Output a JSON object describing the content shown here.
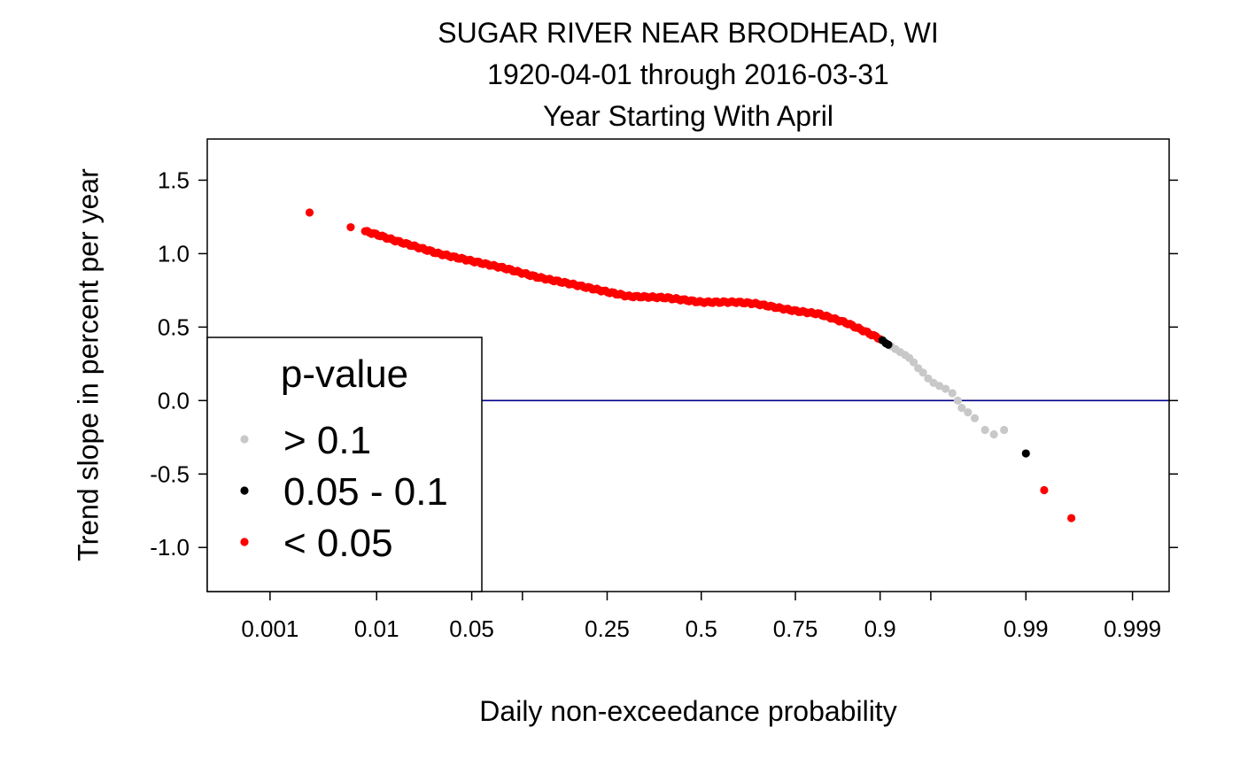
{
  "chart_data": {
    "type": "scatter",
    "title": "SUGAR RIVER NEAR BRODHEAD, WI",
    "subtitle": "1920-04-01 through 2016-03-31",
    "subtitle2": "Year Starting With April",
    "xlabel": "Daily non-exceedance probability",
    "ylabel": "Trend slope in percent per year",
    "x_scale": "probability",
    "xlim": [
      0.0002,
      0.9996
    ],
    "ylim": [
      -1.3,
      1.78
    ],
    "x_ticks": [
      {
        "value": 0.001,
        "label": "0.001"
      },
      {
        "value": 0.01,
        "label": "0.01"
      },
      {
        "value": 0.05,
        "label": "0.05"
      },
      {
        "value": 0.25,
        "label": "0.25"
      },
      {
        "value": 0.5,
        "label": "0.5"
      },
      {
        "value": 0.75,
        "label": "0.75"
      },
      {
        "value": 0.9,
        "label": "0.9"
      },
      {
        "value": 0.99,
        "label": "0.99"
      },
      {
        "value": 0.999,
        "label": "0.999"
      }
    ],
    "x_minor_ticks": [
      0.1,
      0.95
    ],
    "y_ticks": [
      {
        "value": 1.5,
        "label": "1.5"
      },
      {
        "value": 1.0,
        "label": "1.0"
      },
      {
        "value": 0.5,
        "label": "0.5"
      },
      {
        "value": 0.0,
        "label": "0.0"
      },
      {
        "value": -0.5,
        "label": "-0.5"
      },
      {
        "value": -1.0,
        "label": "-1.0"
      }
    ],
    "reference_line": {
      "y": 0,
      "color": "#00008b"
    },
    "legend": {
      "title": "p-value",
      "placement": "left",
      "entries": [
        {
          "label": "> 0.1",
          "color": "#c8c8c8"
        },
        {
          "label": "0.05 - 0.1",
          "color": "#000000"
        },
        {
          "label": "< 0.05",
          "color": "#ff0000"
        }
      ]
    },
    "curve_anchors": [
      [
        0.0025,
        1.28
      ],
      [
        0.006,
        1.18
      ],
      [
        0.01,
        1.13
      ],
      [
        0.014,
        1.09
      ],
      [
        0.02,
        1.05
      ],
      [
        0.03,
        1.0
      ],
      [
        0.05,
        0.95
      ],
      [
        0.08,
        0.9
      ],
      [
        0.12,
        0.84
      ],
      [
        0.18,
        0.79
      ],
      [
        0.25,
        0.74
      ],
      [
        0.3,
        0.71
      ],
      [
        0.4,
        0.7
      ],
      [
        0.5,
        0.67
      ],
      [
        0.6,
        0.67
      ],
      [
        0.65,
        0.66
      ],
      [
        0.75,
        0.61
      ],
      [
        0.8,
        0.59
      ],
      [
        0.85,
        0.53
      ],
      [
        0.88,
        0.47
      ],
      [
        0.9,
        0.42
      ],
      [
        0.91,
        0.38
      ],
      [
        0.92,
        0.35
      ],
      [
        0.935,
        0.3
      ],
      [
        0.945,
        0.2
      ],
      [
        0.955,
        0.1
      ],
      [
        0.965,
        0.0
      ],
      [
        0.975,
        -0.15
      ],
      [
        0.983,
        -0.25
      ]
    ],
    "series": [
      {
        "name": "> 0.1",
        "color": "#c8c8c8",
        "points": [
          [
            0.913,
            0.37
          ],
          [
            0.918,
            0.35
          ],
          [
            0.923,
            0.33
          ],
          [
            0.928,
            0.31
          ],
          [
            0.932,
            0.29
          ],
          [
            0.936,
            0.26
          ],
          [
            0.94,
            0.22
          ],
          [
            0.944,
            0.19
          ],
          [
            0.948,
            0.15
          ],
          [
            0.952,
            0.12
          ],
          [
            0.956,
            0.1
          ],
          [
            0.96,
            0.08
          ],
          [
            0.964,
            0.05
          ],
          [
            0.967,
            0.0
          ],
          [
            0.969,
            -0.05
          ],
          [
            0.972,
            -0.08
          ],
          [
            0.975,
            -0.12
          ],
          [
            0.979,
            -0.2
          ],
          [
            0.982,
            -0.23
          ],
          [
            0.985,
            -0.2
          ]
        ]
      },
      {
        "name": "0.05 - 0.1",
        "color": "#000000",
        "points": [
          [
            0.903,
            0.41
          ],
          [
            0.907,
            0.39
          ],
          [
            0.91,
            0.38
          ],
          [
            0.99,
            -0.36
          ]
        ]
      },
      {
        "name": "< 0.05",
        "color": "#ff0000",
        "points": [
          [
            0.0025,
            1.28
          ],
          [
            0.006,
            1.18
          ],
          [
            0.993,
            -0.61
          ],
          [
            0.996,
            -0.8
          ]
        ]
      }
    ],
    "red_range": [
      0.008,
      0.9
    ]
  }
}
